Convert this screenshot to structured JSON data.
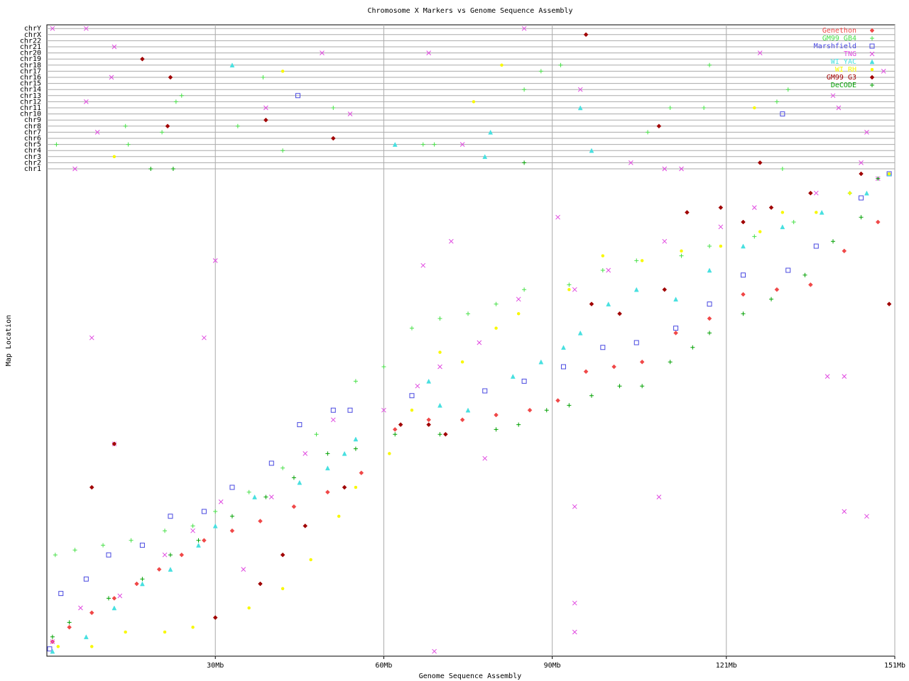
{
  "chart_data": {
    "type": "scatter",
    "title": "Chromosome X Markers vs Genome Sequence Assembly",
    "x_label": "Genome Sequence Assembly",
    "y_label": "Map Location",
    "xlim": [
      0,
      151
    ],
    "xticks": [
      {
        "value": 30,
        "label": "30Mb"
      },
      {
        "value": 60,
        "label": "60Mb"
      },
      {
        "value": 90,
        "label": "90Mb"
      },
      {
        "value": 121,
        "label": "121Mb"
      },
      {
        "value": 151,
        "label": "151Mb"
      }
    ],
    "ylim": [
      0,
      100
    ],
    "y_categories": [
      "chr1",
      "chr2",
      "chr3",
      "chr4",
      "chr5",
      "chr6",
      "chr7",
      "chr8",
      "chr9",
      "chr10",
      "chr11",
      "chr12",
      "chr13",
      "chr14",
      "chr15",
      "chr16",
      "chr17",
      "chr18",
      "chr19",
      "chr20",
      "chr21",
      "chr22",
      "chrX",
      "chrY"
    ],
    "grid": true,
    "legend": "top-right",
    "series": [
      {
        "name": "Genethon",
        "color": "#f04848",
        "marker": "diamond",
        "x": [
          1,
          4,
          8,
          12,
          16,
          20,
          24,
          28,
          33,
          38,
          44,
          50,
          56,
          62,
          68,
          74,
          80,
          86,
          91,
          96,
          101,
          106,
          112,
          118,
          124,
          130,
          136,
          142,
          148
        ],
        "values": [
          3,
          6,
          9,
          12,
          15,
          18,
          21,
          24,
          26,
          28,
          31,
          34,
          38,
          47,
          49,
          49,
          50,
          51,
          53,
          59,
          60,
          61,
          67,
          70,
          75,
          76,
          77,
          84,
          90
        ]
      },
      {
        "name": "GM99 GB4",
        "color": "#48e048",
        "marker": "plus",
        "x": [
          1.5,
          5,
          10,
          15,
          21,
          26,
          30,
          36,
          42,
          48,
          55,
          60,
          65,
          70,
          75,
          80,
          85,
          93,
          99,
          105,
          113,
          118,
          126,
          133,
          143,
          150
        ],
        "values": [
          21,
          22,
          23,
          24,
          26,
          27,
          30,
          34,
          39,
          46,
          57,
          60,
          68,
          70,
          71,
          73,
          76,
          77,
          80,
          82,
          83,
          85,
          87,
          90,
          96,
          100
        ],
        "other_x": [
          1.7,
          14.5,
          14,
          20.5,
          23,
          24,
          34,
          38.5,
          42,
          51,
          67,
          69,
          85,
          88,
          91.5,
          107,
          111,
          117,
          118,
          130,
          132,
          131
        ],
        "other_chr": [
          "chr5",
          "chr5",
          "chr8",
          "chr7",
          "chr12",
          "chr13",
          "chr8",
          "chr16",
          "chr4",
          "chr11",
          "chr5",
          "chr5",
          "chr14",
          "chr17",
          "chr18",
          "chr7",
          "chr11",
          "chr11",
          "chr18",
          "chr12",
          "chr14",
          "chr1"
        ]
      },
      {
        "name": "Marshfield",
        "color": "#4848e0",
        "marker": "square",
        "x": [
          0.5,
          2.5,
          7,
          11,
          17,
          22,
          28,
          33,
          40,
          45,
          51,
          54,
          65,
          78,
          85,
          92,
          99,
          105,
          112,
          118,
          124,
          132,
          137,
          145,
          150
        ],
        "values": [
          1.5,
          13,
          16,
          21,
          23,
          29,
          30,
          35,
          40,
          48,
          51,
          51,
          54,
          55,
          57,
          60,
          64,
          65,
          68,
          73,
          79,
          80,
          85,
          95,
          100
        ],
        "other_x": [
          44.7,
          131
        ],
        "other_chr": [
          "chr13",
          "chr10"
        ]
      },
      {
        "name": "TNG",
        "color": "#e048e0",
        "marker": "cross",
        "x": [
          1,
          6,
          13,
          21,
          26,
          31,
          35,
          40,
          46,
          51,
          60,
          66,
          70,
          77,
          84,
          94,
          100,
          110,
          120,
          126,
          137,
          148,
          8,
          12,
          30,
          28,
          67,
          72,
          91,
          94,
          94,
          94,
          109,
          142,
          146,
          139,
          142,
          78,
          69
        ],
        "values": [
          3,
          10,
          12.5,
          21,
          26,
          32,
          18,
          33,
          42,
          49,
          51,
          56,
          60,
          65,
          74,
          76,
          80,
          86,
          89,
          93,
          96,
          99,
          66,
          44,
          82,
          66,
          81,
          86,
          91,
          31,
          11,
          5,
          33,
          30,
          29,
          58,
          58,
          41,
          1
        ],
        "other_x": [
          1,
          7,
          85,
          12,
          49,
          68,
          127,
          11.5,
          7,
          39,
          54,
          141,
          95,
          9,
          74,
          146,
          5,
          104,
          110,
          113,
          145,
          149,
          140
        ],
        "other_chr": [
          "chrY",
          "chrY",
          "chrY",
          "chr21",
          "chr20",
          "chr20",
          "chr20",
          "chr16",
          "chr12",
          "chr11",
          "chr10",
          "chr11",
          "chr14",
          "chr7",
          "chr5",
          "chr7",
          "chr1",
          "chr2",
          "chr1",
          "chr1",
          "chr2",
          "chr17",
          "chr13"
        ]
      },
      {
        "name": "WI YAC",
        "color": "#48e0e0",
        "marker": "triangle",
        "x": [
          1,
          7,
          12,
          17,
          22,
          27,
          30,
          37,
          45,
          50,
          53,
          55,
          68,
          70,
          75,
          83,
          88,
          92,
          95,
          100,
          105,
          112,
          118,
          124,
          131,
          138,
          146,
          150
        ],
        "values": [
          1,
          4,
          10,
          15,
          18,
          23,
          27,
          33,
          36,
          39,
          42,
          45,
          57,
          52,
          51,
          58,
          61,
          64,
          67,
          73,
          76,
          74,
          80,
          85,
          89,
          92,
          96,
          100
        ],
        "other_x": [
          33,
          95,
          79,
          97,
          78,
          62
        ],
        "other_chr": [
          "chr18",
          "chr11",
          "chr7",
          "chr4",
          "chr3",
          "chr5"
        ]
      },
      {
        "name": "WI RH",
        "color": "#f8f800",
        "marker": "circle",
        "x": [
          2,
          8,
          14,
          21,
          26,
          30,
          36,
          42,
          47,
          52,
          55,
          61,
          65,
          70,
          74,
          80,
          84,
          93,
          99,
          106,
          113,
          120,
          127,
          131,
          137,
          143,
          150
        ],
        "values": [
          2,
          2,
          5,
          5,
          6,
          8,
          10,
          14,
          20,
          29,
          35,
          42,
          51,
          63,
          61,
          68,
          71,
          76,
          83,
          82,
          84,
          85,
          88,
          92,
          92,
          96,
          100
        ],
        "other_x": [
          12,
          42,
          76,
          81,
          126
        ],
        "other_chr": [
          "chr3",
          "chr17",
          "chr12",
          "chr18",
          "chr11"
        ]
      },
      {
        "name": "GM99 G3",
        "color": "#a00000",
        "marker": "diamond",
        "x": [
          8,
          12,
          30,
          38,
          42,
          46,
          53,
          63,
          68,
          71,
          97,
          102,
          110,
          114,
          120,
          124,
          129,
          136,
          145,
          150
        ],
        "values": [
          35,
          44,
          8,
          15,
          21,
          27,
          35,
          48,
          48,
          46,
          73,
          71,
          76,
          92,
          93,
          90,
          93,
          96,
          100,
          73
        ],
        "other_x": [
          17,
          22,
          21.5,
          39,
          51,
          96,
          109,
          127
        ],
        "other_chr": [
          "chr19",
          "chr16",
          "chr8",
          "chr9",
          "chr6",
          "chrX",
          "chr8",
          "chr2"
        ]
      },
      {
        "name": "DeCODE",
        "color": "#00a000",
        "marker": "plus",
        "x": [
          1,
          4,
          11,
          17,
          22,
          27,
          33,
          39,
          44,
          50,
          55,
          62,
          70,
          80,
          84,
          89,
          93,
          97,
          102,
          106,
          111,
          115,
          118,
          124,
          129,
          135,
          140,
          145,
          148
        ],
        "values": [
          4,
          7,
          12,
          16,
          21,
          24,
          29,
          33,
          37,
          42,
          43,
          46,
          46,
          47,
          48,
          51,
          52,
          54,
          56,
          56,
          61,
          64,
          67,
          71,
          74,
          79,
          86,
          91,
          99
        ],
        "other_x": [
          85,
          18.5,
          22.5
        ],
        "other_chr": [
          "chr2",
          "chr1",
          "chr1"
        ]
      }
    ]
  }
}
